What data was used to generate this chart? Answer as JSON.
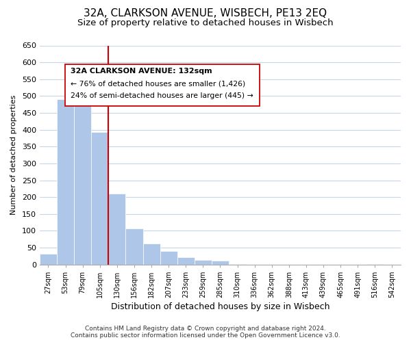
{
  "title": "32A, CLARKSON AVENUE, WISBECH, PE13 2EQ",
  "subtitle": "Size of property relative to detached houses in Wisbech",
  "xlabel": "Distribution of detached houses by size in Wisbech",
  "ylabel": "Number of detached properties",
  "bar_values": [
    32,
    490,
    505,
    393,
    210,
    107,
    62,
    40,
    22,
    13,
    12,
    1,
    0,
    0,
    0,
    0,
    0,
    0,
    0,
    1,
    0
  ],
  "bar_labels": [
    "27sqm",
    "53sqm",
    "79sqm",
    "105sqm",
    "130sqm",
    "156sqm",
    "182sqm",
    "207sqm",
    "233sqm",
    "259sqm",
    "285sqm",
    "310sqm",
    "336sqm",
    "362sqm",
    "388sqm",
    "413sqm",
    "439sqm",
    "465sqm",
    "491sqm",
    "516sqm",
    "542sqm"
  ],
  "bar_color": "#aec6e8",
  "vline_color": "#cc0000",
  "vline_bar_index": 4,
  "ylim": [
    0,
    650
  ],
  "yticks": [
    0,
    50,
    100,
    150,
    200,
    250,
    300,
    350,
    400,
    450,
    500,
    550,
    600,
    650
  ],
  "annotation_title": "32A CLARKSON AVENUE: 132sqm",
  "annotation_line1": "← 76% of detached houses are smaller (1,426)",
  "annotation_line2": "24% of semi-detached houses are larger (445) →",
  "footer_line1": "Contains HM Land Registry data © Crown copyright and database right 2024.",
  "footer_line2": "Contains public sector information licensed under the Open Government Licence v3.0.",
  "background_color": "#ffffff",
  "grid_color": "#c8d4e8"
}
